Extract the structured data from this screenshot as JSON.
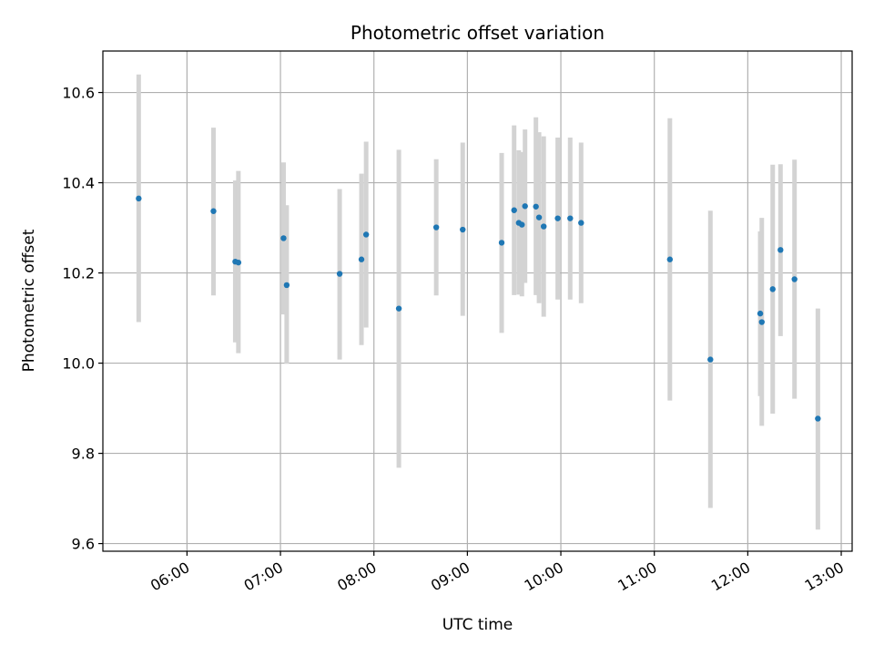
{
  "chart_data": {
    "type": "scatter",
    "title": "Photometric offset variation",
    "xlabel": "UTC time",
    "ylabel": "Photometric offset",
    "x_is_time": true,
    "xlim": [
      "05:06",
      "13:07"
    ],
    "ylim": [
      9.583,
      10.692
    ],
    "x_ticks": [
      "06:00",
      "07:00",
      "08:00",
      "09:00",
      "10:00",
      "11:00",
      "12:00",
      "13:00"
    ],
    "y_ticks": [
      "9.6",
      "9.8",
      "10.0",
      "10.2",
      "10.4",
      "10.6"
    ],
    "y_tick_values": [
      9.6,
      9.8,
      10.0,
      10.2,
      10.4,
      10.6
    ],
    "grid": true,
    "colors": {
      "point": "#1f77b4",
      "errorbar": "#d3d3d3",
      "grid": "#b0b0b0"
    },
    "series": [
      {
        "points": [
          {
            "t": "05:29",
            "y": 10.365,
            "lo": 10.091,
            "hi": 10.64
          },
          {
            "t": "06:17",
            "y": 10.337,
            "lo": 10.15,
            "hi": 10.522
          },
          {
            "t": "06:31",
            "y": 10.225,
            "lo": 10.046,
            "hi": 10.405
          },
          {
            "t": "06:33",
            "y": 10.223,
            "lo": 10.022,
            "hi": 10.426
          },
          {
            "t": "07:02",
            "y": 10.277,
            "lo": 10.108,
            "hi": 10.445
          },
          {
            "t": "07:04",
            "y": 10.173,
            "lo": 9.999,
            "hi": 10.35
          },
          {
            "t": "07:38",
            "y": 10.198,
            "lo": 10.008,
            "hi": 10.386
          },
          {
            "t": "07:52",
            "y": 10.23,
            "lo": 10.04,
            "hi": 10.42
          },
          {
            "t": "07:55",
            "y": 10.285,
            "lo": 10.079,
            "hi": 10.491
          },
          {
            "t": "08:16",
            "y": 10.121,
            "lo": 9.768,
            "hi": 10.473
          },
          {
            "t": "08:40",
            "y": 10.301,
            "lo": 10.15,
            "hi": 10.452
          },
          {
            "t": "08:57",
            "y": 10.296,
            "lo": 10.105,
            "hi": 10.489
          },
          {
            "t": "09:22",
            "y": 10.267,
            "lo": 10.067,
            "hi": 10.466
          },
          {
            "t": "09:30",
            "y": 10.339,
            "lo": 10.151,
            "hi": 10.527
          },
          {
            "t": "09:33",
            "y": 10.311,
            "lo": 10.152,
            "hi": 10.472
          },
          {
            "t": "09:35",
            "y": 10.307,
            "lo": 10.148,
            "hi": 10.468
          },
          {
            "t": "09:37",
            "y": 10.348,
            "lo": 10.178,
            "hi": 10.518
          },
          {
            "t": "09:44",
            "y": 10.347,
            "lo": 10.151,
            "hi": 10.545
          },
          {
            "t": "09:46",
            "y": 10.323,
            "lo": 10.133,
            "hi": 10.512
          },
          {
            "t": "09:49",
            "y": 10.303,
            "lo": 10.103,
            "hi": 10.503
          },
          {
            "t": "09:58",
            "y": 10.321,
            "lo": 10.141,
            "hi": 10.5
          },
          {
            "t": "10:06",
            "y": 10.321,
            "lo": 10.141,
            "hi": 10.5
          },
          {
            "t": "10:13",
            "y": 10.311,
            "lo": 10.133,
            "hi": 10.489
          },
          {
            "t": "11:10",
            "y": 10.23,
            "lo": 9.917,
            "hi": 10.543
          },
          {
            "t": "11:36",
            "y": 10.008,
            "lo": 9.679,
            "hi": 10.338
          },
          {
            "t": "12:08",
            "y": 10.11,
            "lo": 9.927,
            "hi": 10.292
          },
          {
            "t": "12:09",
            "y": 10.091,
            "lo": 9.861,
            "hi": 10.322
          },
          {
            "t": "12:16",
            "y": 10.164,
            "lo": 9.888,
            "hi": 10.44
          },
          {
            "t": "12:21",
            "y": 10.251,
            "lo": 10.06,
            "hi": 10.441
          },
          {
            "t": "12:30",
            "y": 10.186,
            "lo": 9.921,
            "hi": 10.451
          },
          {
            "t": "12:45",
            "y": 9.877,
            "lo": 9.631,
            "hi": 10.121
          }
        ]
      }
    ]
  }
}
